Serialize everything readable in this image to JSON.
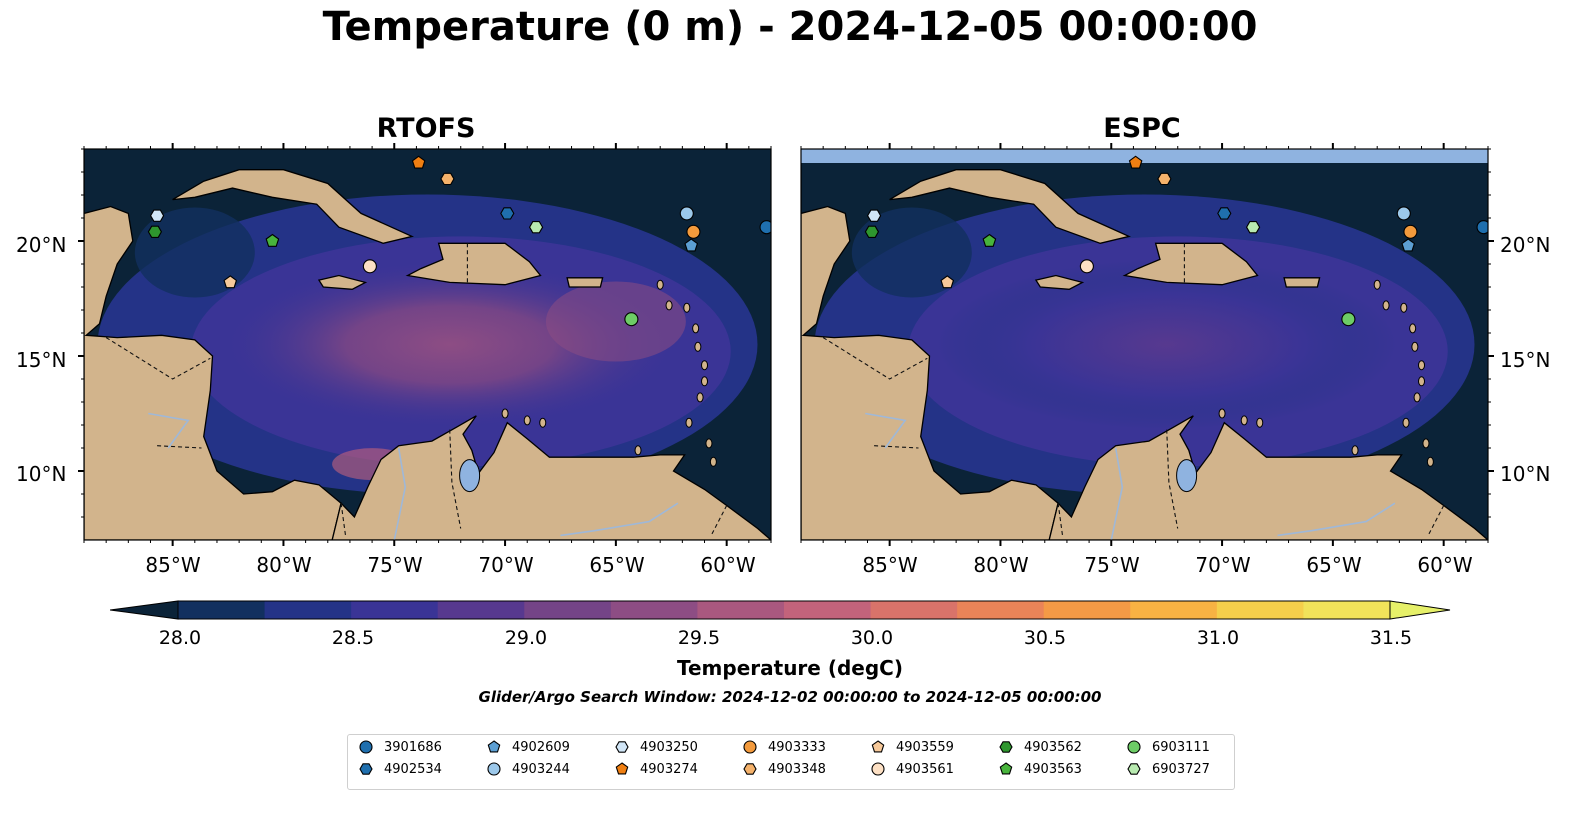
{
  "title": "Temperature (0 m) - 2024-12-05 00:00:00",
  "panels": [
    {
      "title": "RTOFS"
    },
    {
      "title": "ESPC"
    }
  ],
  "axes": {
    "lat_labels": [
      "20°N",
      "15°N",
      "10°N"
    ],
    "lon_labels": [
      "85°W",
      "80°W",
      "75°W",
      "70°W",
      "65°W",
      "60°W"
    ],
    "lon_range": [
      -89,
      -58
    ],
    "lat_range": [
      7,
      24
    ]
  },
  "colorbar": {
    "label": "Temperature (degC)",
    "ticks": [
      "28.0",
      "28.5",
      "29.0",
      "29.5",
      "30.0",
      "30.5",
      "31.0",
      "31.5"
    ],
    "range": [
      27.75,
      31.75
    ],
    "colors": [
      "#0b2338",
      "#12305f",
      "#243387",
      "#3a3496",
      "#57398f",
      "#744487",
      "#8d4d84",
      "#a9587f",
      "#c3637b",
      "#d9736a",
      "#ea8458",
      "#f49a46",
      "#f8b243",
      "#f5cf4b",
      "#f1e35a",
      "#e6f069"
    ],
    "map_colors": {
      "land": "#d2b48c",
      "lake": "#8fb3e0",
      "ocean_dark": "#0b2338"
    }
  },
  "search_window": "Glider/Argo Search Window: 2024-12-02 00:00:00 to 2024-12-05 00:00:00",
  "legend": [
    {
      "id": "3901686",
      "shape": "circle",
      "color": "#1f6fae"
    },
    {
      "id": "4902534",
      "shape": "hexagon",
      "color": "#1f6fae"
    },
    {
      "id": "4902609",
      "shape": "pentagon",
      "color": "#5c9fd3"
    },
    {
      "id": "4903244",
      "shape": "circle",
      "color": "#9cc8ea"
    },
    {
      "id": "4903250",
      "shape": "hexagon",
      "color": "#d1e6f7"
    },
    {
      "id": "4903274",
      "shape": "pentagon",
      "color": "#f07f12"
    },
    {
      "id": "4903333",
      "shape": "circle",
      "color": "#f39a3c"
    },
    {
      "id": "4903348",
      "shape": "hexagon",
      "color": "#f5b26b"
    },
    {
      "id": "4903559",
      "shape": "pentagon",
      "color": "#f7c99a"
    },
    {
      "id": "4903561",
      "shape": "circle",
      "color": "#fde0c4"
    },
    {
      "id": "4903562",
      "shape": "hexagon",
      "color": "#2e962e"
    },
    {
      "id": "4903563",
      "shape": "pentagon",
      "color": "#48b43c"
    },
    {
      "id": "6903111",
      "shape": "circle",
      "color": "#6dcc66"
    },
    {
      "id": "6903727",
      "shape": "hexagon",
      "color": "#b8eab0"
    }
  ],
  "float_positions": [
    {
      "id": "3901686",
      "lon": -58.2,
      "lat": 20.6
    },
    {
      "id": "4902534",
      "lon": -69.9,
      "lat": 21.2
    },
    {
      "id": "4902609",
      "lon": -61.6,
      "lat": 19.8
    },
    {
      "id": "4903244",
      "lon": -61.8,
      "lat": 21.2
    },
    {
      "id": "4903250",
      "lon": -85.7,
      "lat": 21.1
    },
    {
      "id": "4903274",
      "lon": -73.9,
      "lat": 23.4
    },
    {
      "id": "4903333",
      "lon": -61.5,
      "lat": 20.4
    },
    {
      "id": "4903348",
      "lon": -72.6,
      "lat": 22.7
    },
    {
      "id": "4903559",
      "lon": -82.4,
      "lat": 18.2
    },
    {
      "id": "4903561",
      "lon": -76.1,
      "lat": 18.9
    },
    {
      "id": "4903562",
      "lon": -85.8,
      "lat": 20.4
    },
    {
      "id": "4903563",
      "lon": -80.5,
      "lat": 20.0
    },
    {
      "id": "6903111",
      "lon": -64.3,
      "lat": 16.6
    },
    {
      "id": "6903727",
      "lon": -68.6,
      "lat": 20.6
    }
  ]
}
